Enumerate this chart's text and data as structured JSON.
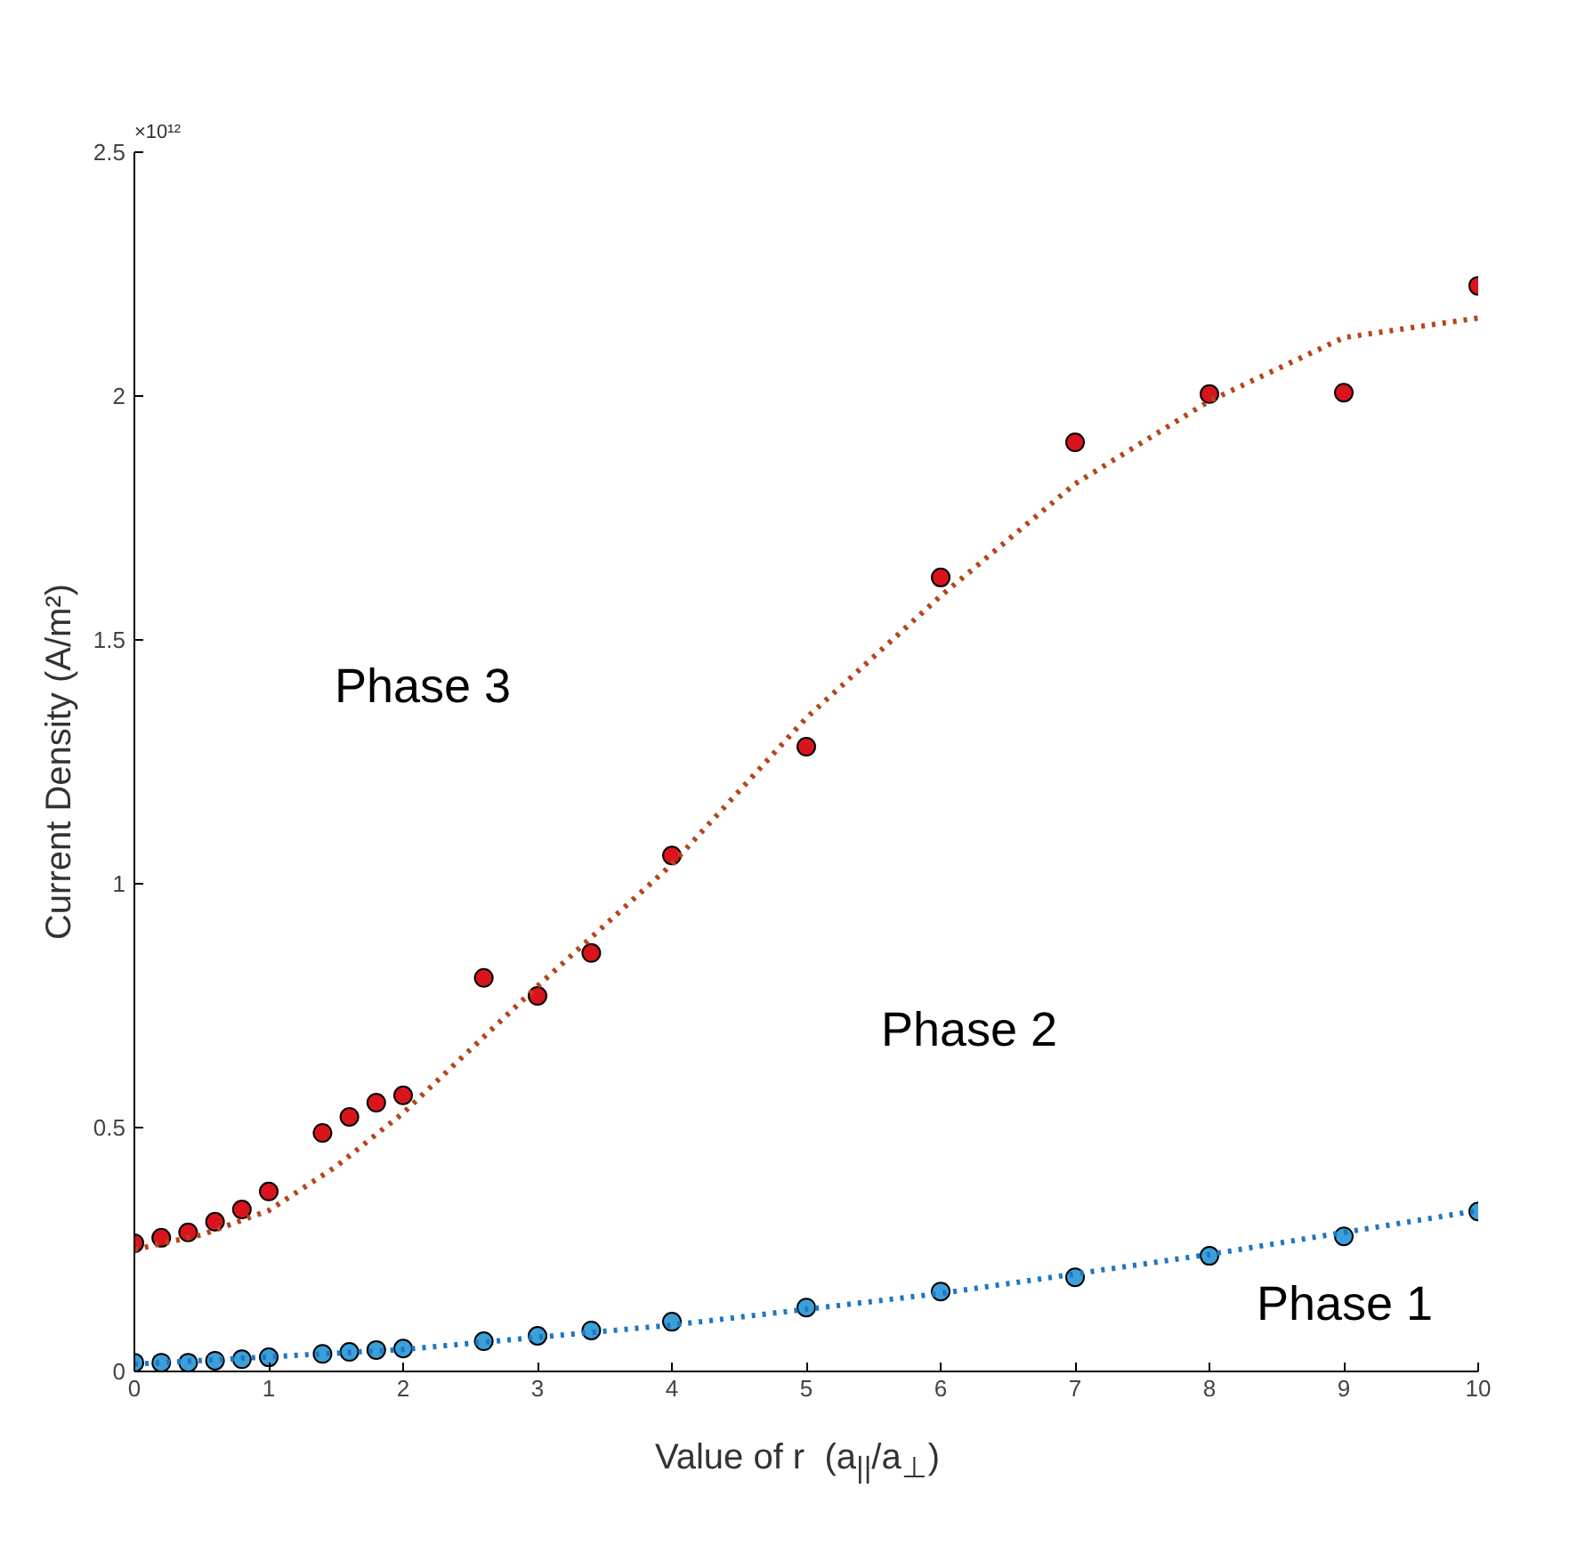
{
  "chart_data": {
    "type": "scatter",
    "xlabel": "Value of r  (a$_{||}$/a$_{⊥}$)",
    "ylabel": "Current Density (A/m²)",
    "annotations": [
      "×10¹²",
      "Phase 3",
      "Phase 2",
      "Phase 1"
    ],
    "xlim": [
      0,
      10
    ],
    "ylim": [
      0,
      2.5
    ],
    "xticks": [
      0,
      1,
      2,
      3,
      4,
      5,
      6,
      7,
      8,
      9,
      10
    ],
    "yticks": [
      0,
      0.5,
      1,
      1.5,
      2,
      2.5
    ],
    "grid": false,
    "series": [
      {
        "marker": "circle",
        "color": "#d9141c",
        "x": [
          0,
          0.2,
          0.4,
          0.6,
          0.8,
          1.0,
          1.4,
          1.6,
          1.8,
          2.0,
          2.6,
          3.0,
          3.4,
          4,
          5,
          6,
          7,
          8,
          9,
          10
        ],
        "values": [
          0.263,
          0.274,
          0.285,
          0.307,
          0.332,
          0.369,
          0.489,
          0.522,
          0.551,
          0.566,
          0.807,
          0.77,
          0.858,
          1.058,
          1.281,
          1.628,
          1.905,
          2.004,
          2.007,
          2.226
        ]
      },
      {
        "type": "line",
        "line_style": "dotted",
        "color": "#b5461c",
        "x": [
          0,
          0.5,
          1,
          1.5,
          2,
          3,
          4,
          5,
          6,
          7,
          8,
          9,
          10
        ],
        "values": [
          0.25,
          0.28,
          0.33,
          0.42,
          0.53,
          0.79,
          1.04,
          1.34,
          1.59,
          1.82,
          1.99,
          2.12,
          2.16
        ]
      },
      {
        "marker": "circle",
        "color": "#3b9fd9",
        "x": [
          0,
          0.2,
          0.4,
          0.6,
          0.8,
          1.0,
          1.4,
          1.6,
          1.8,
          2.0,
          2.6,
          3.0,
          3.4,
          4,
          5,
          6,
          7,
          8,
          9,
          10
        ],
        "values": [
          0.018,
          0.018,
          0.018,
          0.022,
          0.025,
          0.029,
          0.036,
          0.04,
          0.044,
          0.047,
          0.062,
          0.073,
          0.084,
          0.102,
          0.131,
          0.164,
          0.193,
          0.237,
          0.277,
          0.328
        ]
      },
      {
        "type": "line",
        "line_style": "dotted",
        "color": "#1f77c0",
        "x": [
          0,
          2,
          4,
          6,
          8,
          10
        ],
        "values": [
          0.015,
          0.045,
          0.095,
          0.16,
          0.24,
          0.33
        ]
      }
    ]
  }
}
